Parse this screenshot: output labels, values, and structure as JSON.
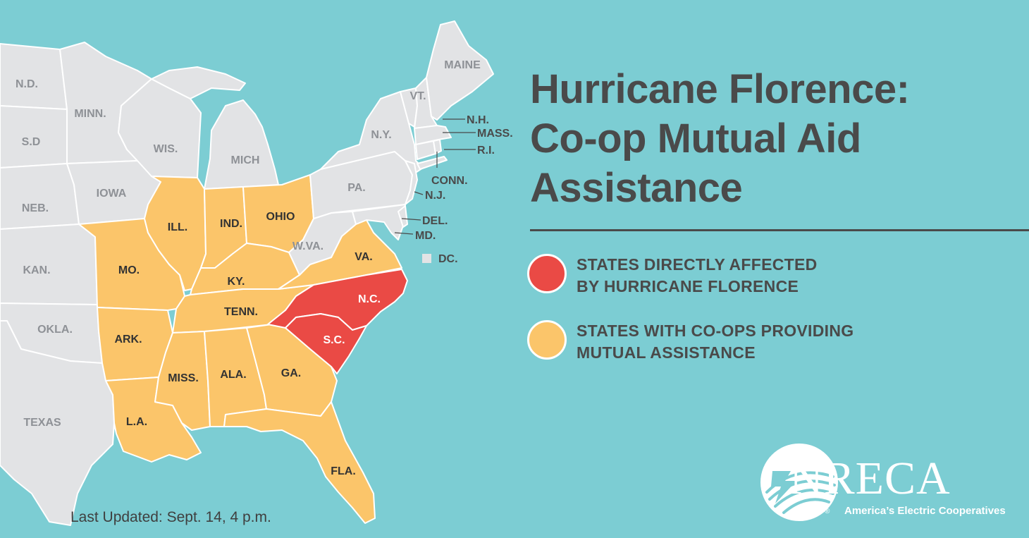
{
  "title": {
    "line1": "Hurricane Florence:",
    "line2": "Co-op Mutual Aid",
    "line3": "Assistance"
  },
  "legend": {
    "affected": {
      "line1": "STATES DIRECTLY AFFECTED",
      "line2": "BY HURRICANE FLORENCE",
      "color": "#ea4a45"
    },
    "assisting": {
      "line1": "STATES WITH CO-OPS PROVIDING",
      "line2": "MUTUAL ASSISTANCE",
      "color": "#fbc56a"
    }
  },
  "colors": {
    "water": "#7ccdd3",
    "other_states": "#e2e3e5",
    "borders": "#ffffff",
    "text_dark": "#4a4a4a",
    "label_gray": "#8e9196"
  },
  "states": {
    "nd": "N.D.",
    "sd": "S.D",
    "neb": "NEB.",
    "kan": "KAN.",
    "okla": "OKLA.",
    "texas": "TEXAS",
    "minn": "MINN.",
    "iowa": "IOWA",
    "wis": "WIS.",
    "mich": "MICH",
    "ill": "ILL.",
    "ind": "IND.",
    "ohio": "OHIO",
    "mo": "MO.",
    "ky": "KY.",
    "tenn": "TENN.",
    "ark": "ARK.",
    "miss": "MISS.",
    "ala": "ALA.",
    "ga": "GA.",
    "la": "L.A.",
    "fla": "FLA.",
    "va": "VA.",
    "wva": "W.VA.",
    "pa": "PA.",
    "ny": "N.Y.",
    "vt": "VT.",
    "maine": "MAINE",
    "nh": "N.H.",
    "mass": "MASS.",
    "ri": "R.I.",
    "conn": "CONN.",
    "nj": "N.J.",
    "del": "DEL.",
    "md": "MD.",
    "dc": "DC.",
    "nc": "N.C.",
    "sc": "S.C."
  },
  "state_status": {
    "affected": [
      "N.C.",
      "S.C."
    ],
    "assisting": [
      "MO.",
      "ILL.",
      "IND.",
      "OHIO",
      "KY.",
      "TENN.",
      "ARK.",
      "MISS.",
      "ALA.",
      "GA.",
      "L.A.",
      "FLA.",
      "VA."
    ]
  },
  "updated": "Last Updated: Sept. 14, 4 p.m.",
  "logo": {
    "name": "NRECA",
    "tagline": "America’s Electric Cooperatives",
    "reg": "®"
  }
}
